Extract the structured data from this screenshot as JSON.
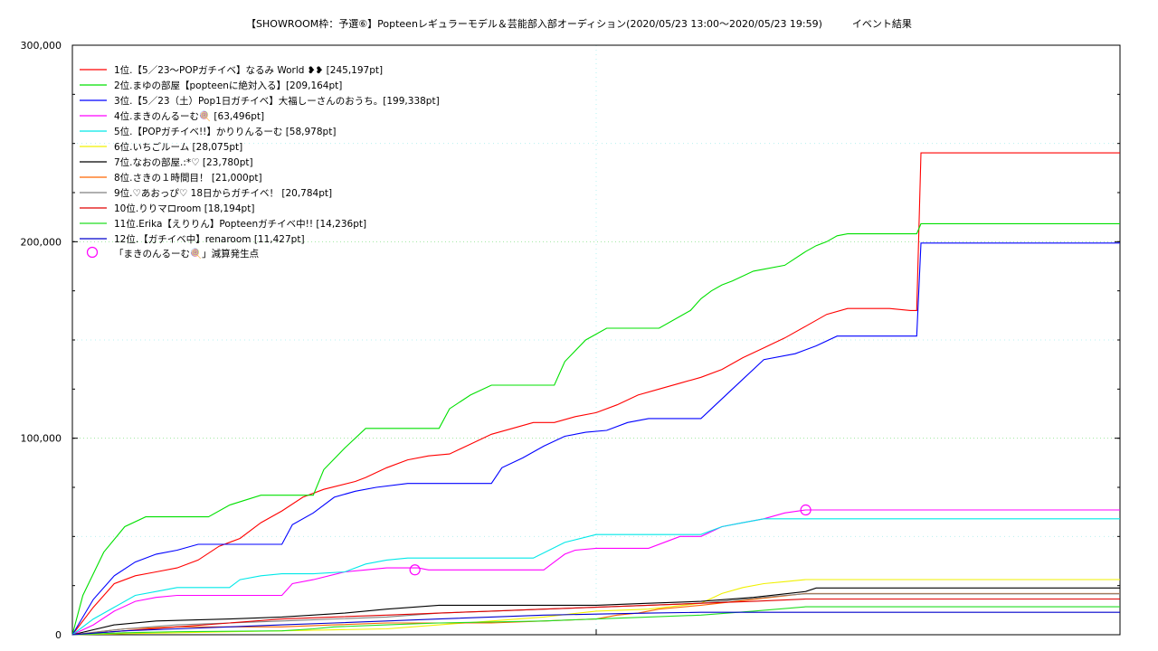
{
  "chart_data": {
    "type": "line",
    "title": "【SHOWROOM枠：予選⑥】Popteenレギュラーモデル＆芸能部入部オーディション(2020/05/23 13:00〜2020/05/23 19:59)　　　イベント結果",
    "xlabel": "",
    "ylabel": "",
    "xlim": [
      0,
      1000
    ],
    "ylim": [
      0,
      300000
    ],
    "x_ticks": [
      0,
      500,
      1000
    ],
    "y_ticks": [
      0,
      100000,
      200000,
      300000
    ],
    "y_tick_labels": [
      "0",
      "100,000",
      "200,000",
      "300,000"
    ],
    "grid": true,
    "legend_position": "top-left",
    "series": [
      {
        "name": "1位.【5／23〜POPガチイベ】なるみ World ❥❥ [245,197pt]",
        "color": "#ff0000",
        "x": [
          0,
          20,
          40,
          60,
          80,
          100,
          120,
          140,
          160,
          180,
          200,
          220,
          240,
          270,
          280,
          300,
          320,
          340,
          360,
          380,
          400,
          420,
          440,
          460,
          480,
          500,
          520,
          540,
          560,
          580,
          600,
          620,
          640,
          660,
          680,
          700,
          720,
          740,
          760,
          780,
          800,
          806,
          810,
          1000
        ],
        "y": [
          0,
          14000,
          26000,
          30000,
          32000,
          34000,
          38000,
          45000,
          49000,
          57000,
          63000,
          70000,
          74000,
          78000,
          80000,
          85000,
          89000,
          91000,
          92000,
          97000,
          102000,
          105000,
          108000,
          108000,
          111000,
          113000,
          117000,
          122000,
          125000,
          128000,
          131000,
          135000,
          141000,
          146000,
          151000,
          157000,
          163000,
          166000,
          166000,
          166000,
          165000,
          165000,
          245197,
          245197
        ]
      },
      {
        "name": "2位.まゆの部屋【popteenに絶対入る】[209,164pt]",
        "color": "#00e000",
        "x": [
          0,
          10,
          30,
          50,
          70,
          100,
          130,
          150,
          180,
          230,
          240,
          260,
          280,
          300,
          350,
          360,
          380,
          400,
          420,
          460,
          470,
          490,
          510,
          540,
          560,
          590,
          600,
          610,
          620,
          630,
          650,
          680,
          700,
          710,
          720,
          730,
          740,
          760,
          780,
          800,
          806,
          810,
          1000
        ],
        "y": [
          0,
          20000,
          42000,
          55000,
          60000,
          60000,
          60000,
          66000,
          71000,
          71000,
          84000,
          95000,
          105000,
          105000,
          105000,
          115000,
          122000,
          127000,
          127000,
          127000,
          139000,
          150000,
          156000,
          156000,
          156000,
          165000,
          171000,
          175000,
          178000,
          180000,
          185000,
          188000,
          195000,
          198000,
          200000,
          203000,
          204000,
          204000,
          204000,
          204000,
          204000,
          209164,
          209164
        ]
      },
      {
        "name": "3位.【5／23（土）Pop1日ガチイベ】大福しーさんのおうち。[199,338pt]",
        "color": "#0000ff",
        "x": [
          0,
          20,
          40,
          60,
          80,
          100,
          120,
          200,
          210,
          230,
          250,
          270,
          290,
          320,
          400,
          410,
          430,
          450,
          470,
          490,
          510,
          530,
          550,
          600,
          630,
          660,
          690,
          710,
          730,
          750,
          770,
          780,
          800,
          806,
          810,
          1000
        ],
        "y": [
          0,
          18000,
          30000,
          37000,
          41000,
          43000,
          46000,
          46000,
          56000,
          62000,
          70000,
          73000,
          75000,
          77000,
          77000,
          85000,
          90000,
          96000,
          101000,
          103000,
          104000,
          108000,
          110000,
          110000,
          125000,
          140000,
          143000,
          147000,
          152000,
          152000,
          152000,
          152000,
          152000,
          152000,
          199338,
          199338
        ]
      },
      {
        "name": "4位.まきのんるーむ🍭 [63,496pt]",
        "color": "#ff00ff",
        "x": [
          0,
          20,
          40,
          60,
          80,
          100,
          130,
          200,
          210,
          230,
          260,
          280,
          300,
          320,
          330,
          340,
          360,
          400,
          450,
          460,
          470,
          480,
          500,
          550,
          570,
          580,
          600,
          620,
          640,
          660,
          680,
          700,
          720,
          740,
          760,
          780,
          800,
          806,
          810,
          1000
        ],
        "y": [
          0,
          5000,
          12000,
          17000,
          19000,
          20000,
          20000,
          20000,
          26000,
          28000,
          32000,
          33000,
          34000,
          34000,
          34000,
          33000,
          33000,
          33000,
          33000,
          37000,
          41000,
          43000,
          44000,
          44000,
          48000,
          50000,
          50000,
          55000,
          57000,
          59000,
          62000,
          63496,
          63496,
          63496,
          63496,
          63496,
          63496,
          63496,
          63496,
          63496
        ]
      },
      {
        "name": "5位.【POPガチイベ!!】かりりんるーむ [58,978pt]",
        "color": "#00e8e8",
        "x": [
          0,
          20,
          40,
          60,
          80,
          100,
          150,
          160,
          180,
          200,
          230,
          260,
          280,
          300,
          320,
          400,
          440,
          470,
          500,
          550,
          600,
          620,
          640,
          660,
          700,
          1000
        ],
        "y": [
          0,
          8000,
          14000,
          20000,
          22000,
          24000,
          24000,
          28000,
          30000,
          31000,
          31000,
          32000,
          36000,
          38000,
          39000,
          39000,
          39000,
          47000,
          51000,
          51000,
          51000,
          55000,
          57000,
          58978,
          58978,
          58978
        ]
      },
      {
        "name": "6位.いちごルーム [28,075pt]",
        "color": "#f0f000",
        "x": [
          0,
          100,
          200,
          300,
          350,
          400,
          450,
          500,
          550,
          600,
          620,
          640,
          660,
          680,
          700,
          800,
          1000
        ],
        "y": [
          0,
          1000,
          2000,
          3000,
          5000,
          7000,
          9000,
          12000,
          13000,
          16000,
          21000,
          24000,
          26000,
          27000,
          28075,
          28075,
          28075
        ]
      },
      {
        "name": "7位.なおの部屋.:*♡ [23,780pt]",
        "color": "#000000",
        "x": [
          0,
          40,
          80,
          150,
          200,
          260,
          300,
          350,
          400,
          450,
          500,
          550,
          600,
          650,
          700,
          710,
          800,
          1000
        ],
        "y": [
          0,
          5000,
          7000,
          8000,
          9000,
          11000,
          13000,
          15000,
          15000,
          15000,
          15000,
          16000,
          17000,
          19000,
          22000,
          23780,
          23780,
          23780
        ]
      },
      {
        "name": "8位.さきの１時間目！ [21,000pt]",
        "color": "#ff6600",
        "x": [
          0,
          50,
          100,
          150,
          200,
          250,
          300,
          350,
          400,
          450,
          500,
          520,
          540,
          560,
          580,
          600,
          650,
          700,
          1000
        ],
        "y": [
          0,
          3000,
          4000,
          4000,
          4000,
          5000,
          6000,
          6000,
          6000,
          7000,
          8000,
          10000,
          11000,
          13000,
          14000,
          15000,
          18000,
          21000,
          21000
        ]
      },
      {
        "name": "9位.♡あおっぴ♡ 18日からガチイベ！ [20,784pt]",
        "color": "#808080",
        "x": [
          0,
          50,
          100,
          150,
          200,
          300,
          350,
          400,
          450,
          500,
          550,
          600,
          620,
          640,
          660,
          680,
          700,
          1000
        ],
        "y": [
          0,
          3000,
          5000,
          6000,
          7000,
          9000,
          11000,
          12000,
          13000,
          14000,
          15000,
          16000,
          17000,
          18000,
          19000,
          20000,
          20784,
          20784
        ]
      },
      {
        "name": "10位.りりマロroom [18,194pt]",
        "color": "#e00000",
        "x": [
          0,
          50,
          100,
          150,
          200,
          250,
          300,
          350,
          400,
          450,
          500,
          550,
          600,
          650,
          700,
          1000
        ],
        "y": [
          0,
          2000,
          4000,
          6000,
          8000,
          9000,
          10000,
          11000,
          12000,
          13000,
          14000,
          15000,
          16000,
          17000,
          18194,
          18194
        ]
      },
      {
        "name": "11位.Erika【えりりん】Popteenガチイベ中!! [14,236pt]",
        "color": "#22dd22",
        "x": [
          0,
          50,
          100,
          200,
          230,
          250,
          300,
          350,
          400,
          450,
          500,
          550,
          600,
          650,
          700,
          1000
        ],
        "y": [
          0,
          1000,
          1500,
          2000,
          3000,
          4000,
          5000,
          6000,
          6500,
          7000,
          8000,
          9000,
          10000,
          12000,
          14236,
          14236
        ]
      },
      {
        "name": "12位.【ガチイベ中】renaroom [11,427pt]",
        "color": "#0000cc",
        "x": [
          0,
          50,
          100,
          150,
          200,
          250,
          300,
          350,
          400,
          450,
          500,
          550,
          600,
          1000
        ],
        "y": [
          0,
          2000,
          3000,
          4000,
          5000,
          6000,
          7000,
          8000,
          9000,
          10000,
          10500,
          11000,
          11427,
          11427
        ]
      }
    ],
    "markers": {
      "name": "「まきのんるーむ🍭」減算発生点",
      "color": "#ff00ff",
      "points": [
        {
          "x": 327,
          "y": 33000
        },
        {
          "x": 700,
          "y": 63496
        }
      ]
    }
  }
}
